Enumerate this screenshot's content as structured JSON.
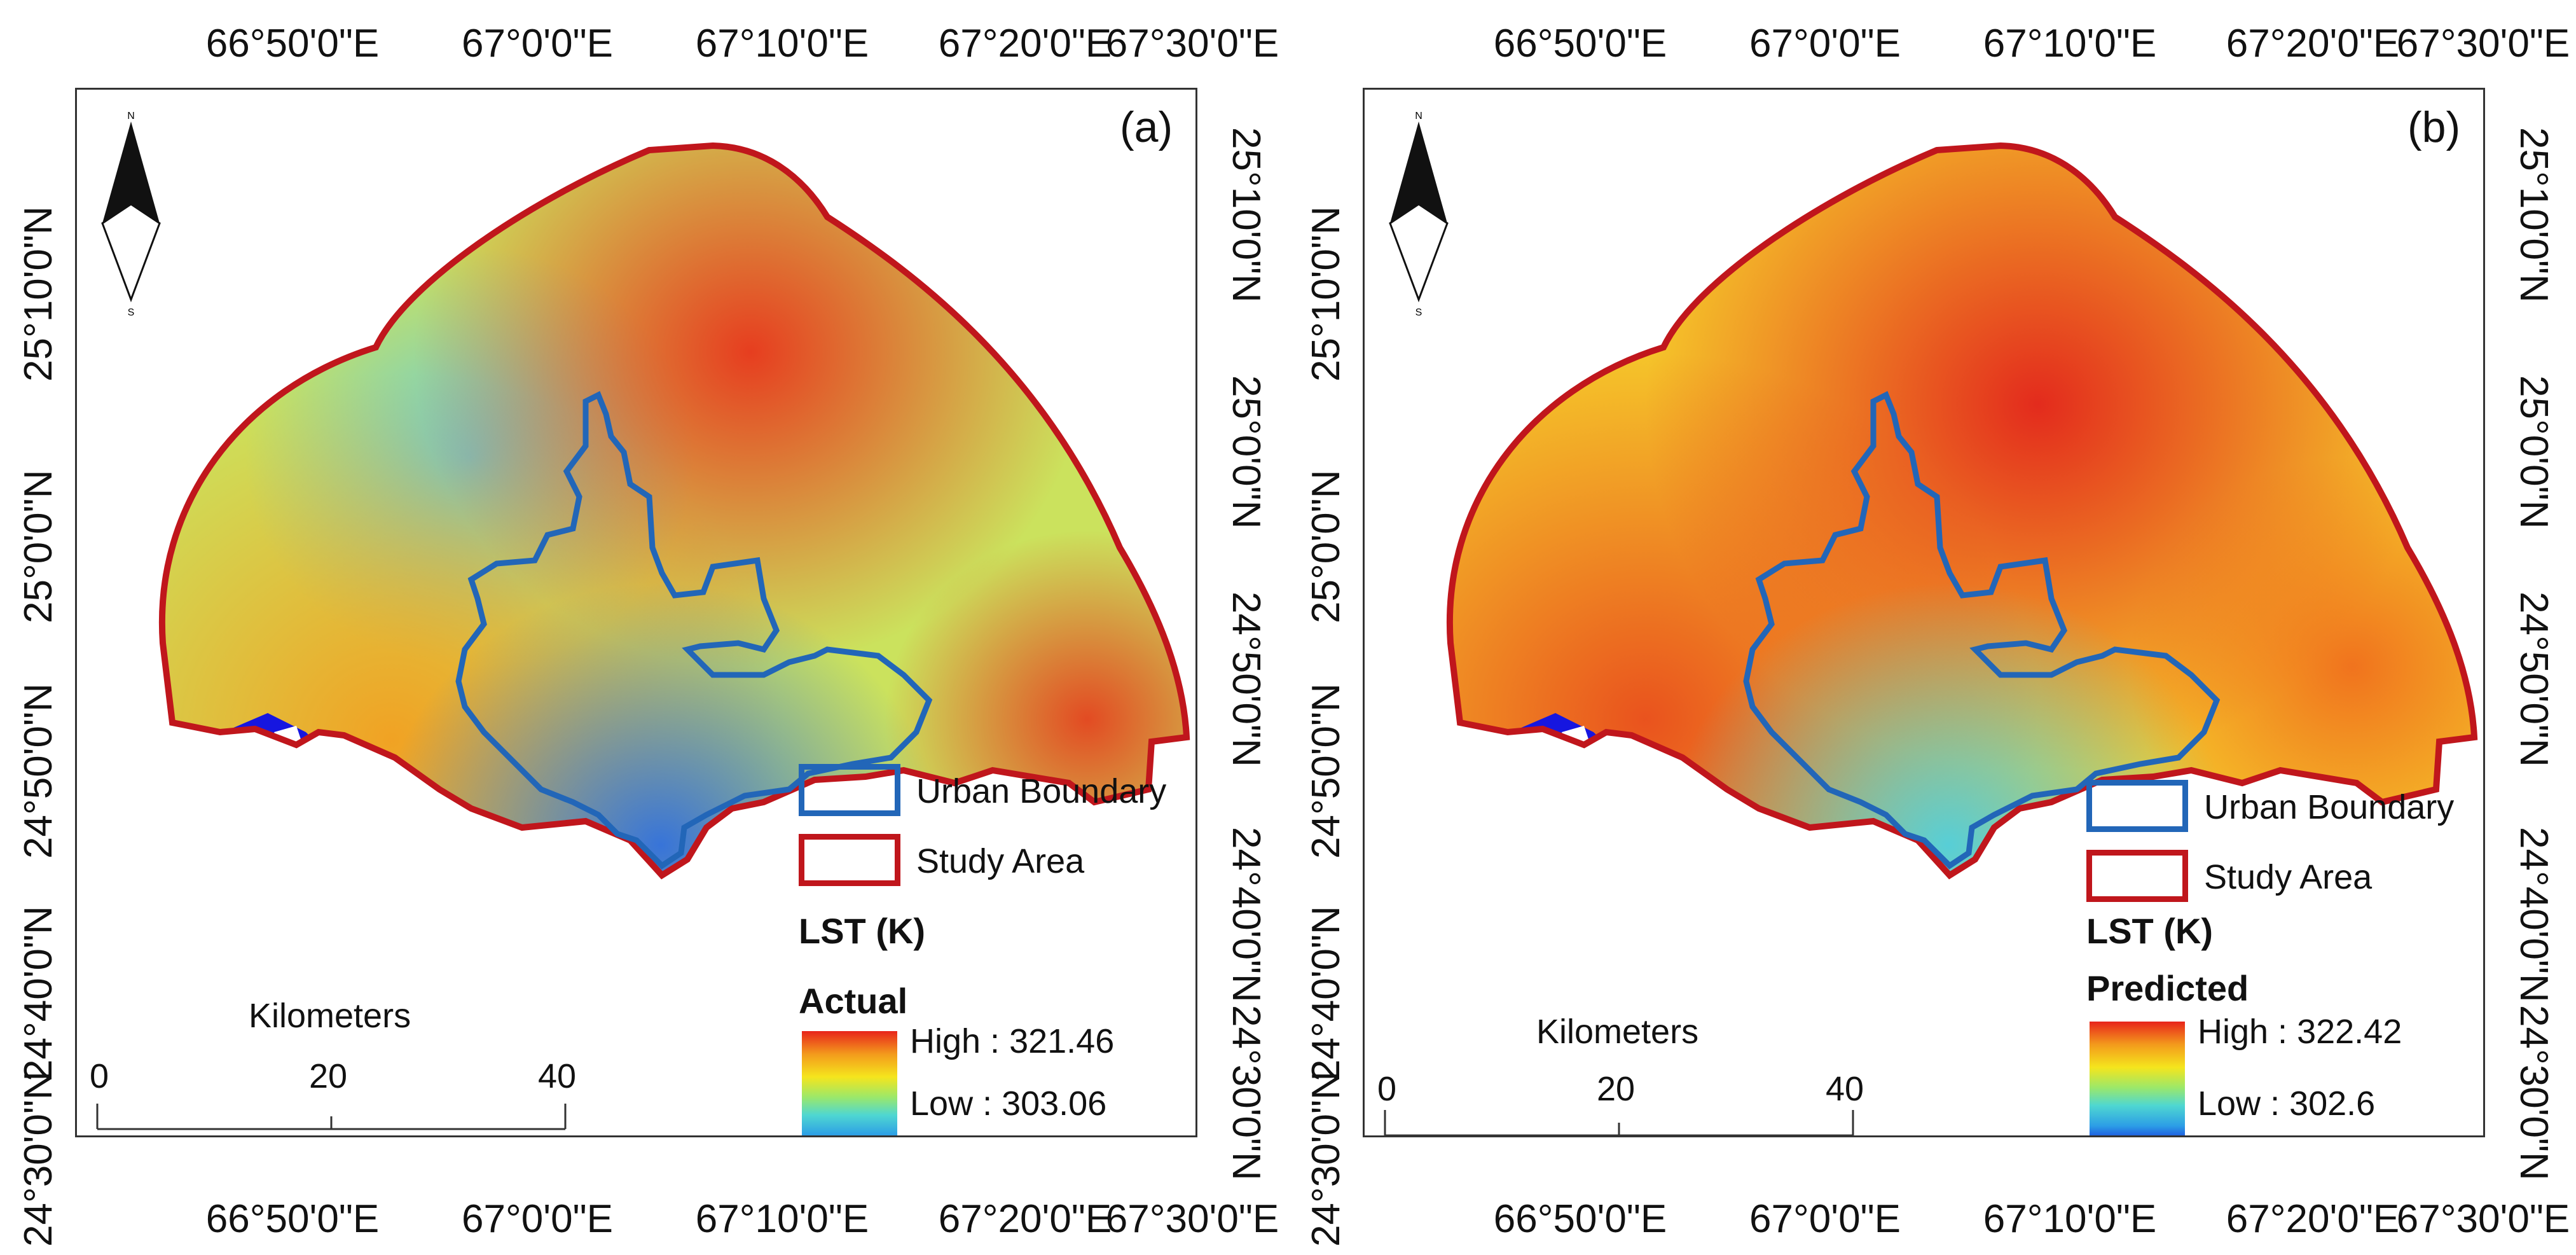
{
  "figure": {
    "lon_labels": [
      "66°50'0\"E",
      "67°0'0\"E",
      "67°10'0\"E",
      "67°20'0\"E",
      "67°30'0\"E"
    ],
    "lat_labels": [
      "25°10'0\"N",
      "25°0'0\"N",
      "24°50'0\"N",
      "24°40'0\"N",
      "24°30'0\"N"
    ],
    "colors": {
      "study_area": "#c0161c",
      "urban_boundary": "#2266b8",
      "ramp": [
        "#e8241b",
        "#f39a1c",
        "#f5e51d",
        "#9be86a",
        "#4fd7d1",
        "#2c9ee6",
        "#1010d8"
      ]
    }
  },
  "panels": [
    {
      "id": "a",
      "letter": "(a)",
      "legend": {
        "urban_boundary": "Urban Boundary",
        "study_area": "Study Area",
        "lst_title": "LST (K)",
        "subtitle": "Actual",
        "high": "High : 321.46",
        "low": "Low : 303.06"
      },
      "scale": {
        "title": "Kilometers",
        "ticks": [
          "0",
          "20",
          "40"
        ]
      },
      "north_arrow": {
        "n": "N",
        "s": "S"
      }
    },
    {
      "id": "b",
      "letter": "(b)",
      "legend": {
        "urban_boundary": "Urban Boundary",
        "study_area": "Study Area",
        "lst_title": "LST (K)",
        "subtitle": "Predicted",
        "high": "High : 322.42",
        "low": "Low : 302.6"
      },
      "scale": {
        "title": "Kilometers",
        "ticks": [
          "0",
          "20",
          "40"
        ]
      },
      "north_arrow": {
        "n": "N",
        "s": "S"
      }
    }
  ]
}
